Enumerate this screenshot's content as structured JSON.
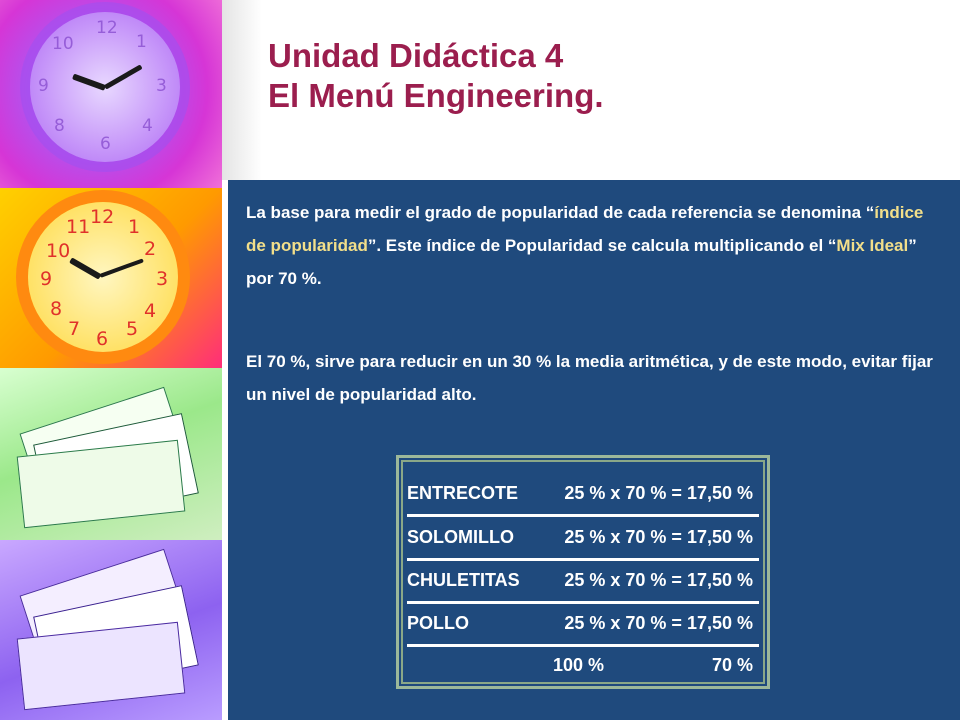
{
  "slide": {
    "title_line1": "Unidad Didáctica 4",
    "title_line2": "El Menú Engineering."
  },
  "colors": {
    "title": "#9b1e4e",
    "panel": "#1f4a7d",
    "highlight": "#f2df8a",
    "text": "#ffffff"
  },
  "paragraph1": {
    "part1": "La base para medir el grado de popularidad de cada referencia se denomina “",
    "term1": "índice de popularidad",
    "part2": "”. Este índice de Popularidad se calcula multiplicando el “",
    "term2": "Mix Ideal",
    "part3": "” por 70 %."
  },
  "paragraph2": "El 70 %, sirve para reducir en un 30 % la media aritmética, y de este modo, evitar fijar un nivel de popularidad alto.",
  "table": {
    "rows": [
      {
        "name": "ENTRECOTE",
        "calc": "25 %  x  70 %  =  17,50 %"
      },
      {
        "name": "SOLOMILLO",
        "calc": "25 %  x  70 %  =  17,50 %"
      },
      {
        "name": "CHULETITAS",
        "calc": "25 %  x  70 %  =  17,50 %"
      },
      {
        "name": "POLLO",
        "calc": "25 %  x  70 %  =  17,50 %"
      }
    ],
    "total_mix": "100 %",
    "total_result": "70 %"
  },
  "decor": {
    "clock1_icon": "purple-clock-icon",
    "clock2_icon": "orange-clock-icon",
    "papers1_icon": "green-paper-stack-icon",
    "papers2_icon": "purple-paper-stack-icon"
  }
}
